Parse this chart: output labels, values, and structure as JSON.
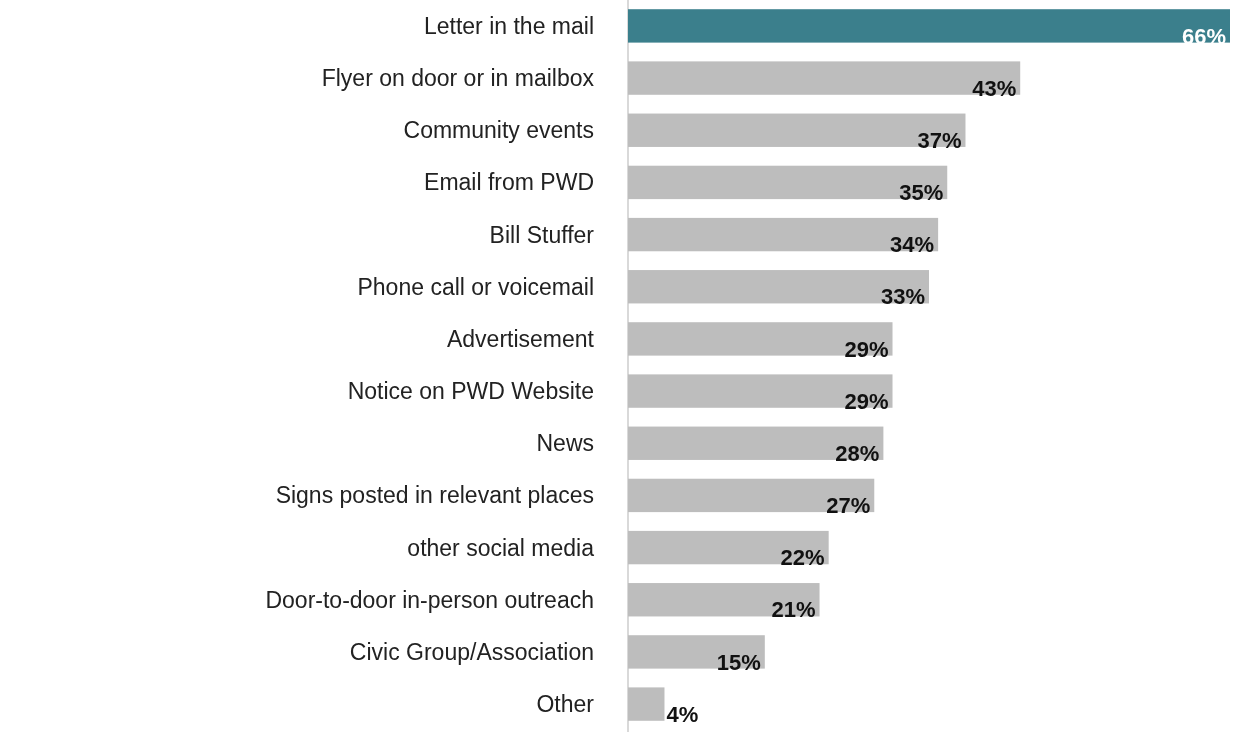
{
  "chart_data": {
    "type": "bar",
    "orientation": "horizontal",
    "categories": [
      "Letter in the mail",
      "Flyer on door or in mailbox",
      "Community events",
      "Email from PWD",
      "Bill Stuffer",
      "Phone call or voicemail",
      "Advertisement",
      "Notice on PWD Website",
      "News",
      "Signs posted in relevant places",
      "other social media",
      "Door-to-door in-person outreach",
      "Civic Group/Association",
      "Other"
    ],
    "values": [
      66,
      43,
      37,
      35,
      34,
      33,
      29,
      29,
      28,
      27,
      22,
      21,
      15,
      4
    ],
    "value_labels": [
      "66%",
      "43%",
      "37%",
      "35%",
      "34%",
      "33%",
      "29%",
      "29%",
      "28%",
      "27%",
      "22%",
      "21%",
      "15%",
      "4%"
    ],
    "colors": [
      "#3b7f8c",
      "#bdbdbd",
      "#bdbdbd",
      "#bdbdbd",
      "#bdbdbd",
      "#bdbdbd",
      "#bdbdbd",
      "#bdbdbd",
      "#bdbdbd",
      "#bdbdbd",
      "#bdbdbd",
      "#bdbdbd",
      "#bdbdbd",
      "#bdbdbd"
    ]
  }
}
